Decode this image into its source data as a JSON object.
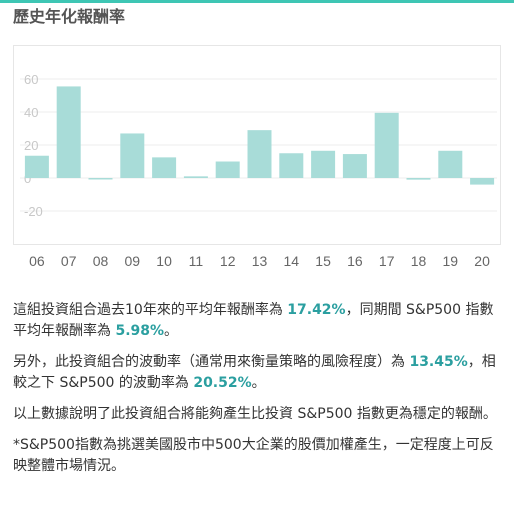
{
  "header": {
    "title": "歷史年化報酬率"
  },
  "colors": {
    "accent": "#3ec6b4",
    "bar": "#a8dcd8",
    "highlight": "#2b9fa0"
  },
  "chart_data": {
    "type": "bar",
    "categories": [
      "06",
      "07",
      "08",
      "09",
      "10",
      "11",
      "12",
      "13",
      "14",
      "15",
      "16",
      "17",
      "18",
      "19",
      "20"
    ],
    "values": [
      13.5,
      55.5,
      0,
      27,
      12.5,
      1,
      10,
      29,
      15,
      16.5,
      14.5,
      39.5,
      -1,
      16.5,
      -4
    ],
    "yticks": [
      "60",
      "40",
      "20",
      "0",
      "-20"
    ],
    "ylim": [
      -30,
      70
    ],
    "grid": true
  },
  "summary": {
    "p1_a": "這組投資組合過去10年來的平均年報酬率為 ",
    "p1_v1": "17.42%",
    "p1_b": "，同期間 S&P500 指數平均年報酬率為 ",
    "p1_v2": "5.98%",
    "p1_c": "。",
    "p2_a": "另外，此投資組合的波動率（通常用來衡量策略的風險程度）為 ",
    "p2_v1": "13.45%",
    "p2_b": "，相較之下 S&P500 的波動率為 ",
    "p2_v2": "20.52%",
    "p2_c": "。",
    "p3": "以上數據說明了此投資組合將能夠產生比投資 S&P500 指數更為穩定的報酬。",
    "p4": "*S&P500指數為挑選美國股市中500大企業的股價加權產生，一定程度上可反映整體市場情況。"
  }
}
